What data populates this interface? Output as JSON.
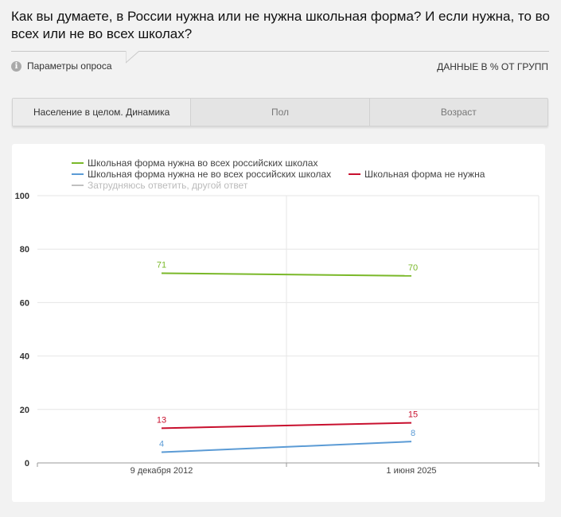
{
  "title": "Как вы думаете, в России нужна или не нужна школьная форма? И если нужна, то во всех или не во всех школах?",
  "params_label": "Параметры опроса",
  "units_label": "ДАННЫЕ В % ОТ ГРУПП",
  "tabs": [
    {
      "label": "Население в целом. Динамика",
      "active": true
    },
    {
      "label": "Пол",
      "active": false
    },
    {
      "label": "Возраст",
      "active": false
    }
  ],
  "icons": {
    "info": "info-icon"
  },
  "colors": {
    "green": "#7ab829",
    "blue": "#5b9bd5",
    "red": "#c8102e",
    "gray": "#c0c0c0"
  },
  "chart_data": {
    "type": "line",
    "x": [
      "9 декабря 2012",
      "1 июня 2025"
    ],
    "ylim": [
      0,
      100
    ],
    "yticks": [
      0,
      20,
      40,
      60,
      80,
      100
    ],
    "grid": true,
    "legend_position": "top",
    "series": [
      {
        "name": "Школьная форма нужна во всех российских школах",
        "color": "#7ab829",
        "values": [
          71,
          70
        ],
        "labels": [
          "71",
          "70"
        ]
      },
      {
        "name": "Школьная форма нужна не во всех российских школах",
        "color": "#5b9bd5",
        "values": [
          4,
          8
        ],
        "labels": [
          "4",
          "8"
        ]
      },
      {
        "name": "Школьная форма не нужна",
        "color": "#c8102e",
        "values": [
          13,
          15
        ],
        "labels": [
          "13",
          "15"
        ]
      },
      {
        "name": "Затрудняюсь ответить, другой ответ",
        "color": "#c0c0c0",
        "values": [
          null,
          null
        ],
        "hidden": true
      }
    ]
  }
}
